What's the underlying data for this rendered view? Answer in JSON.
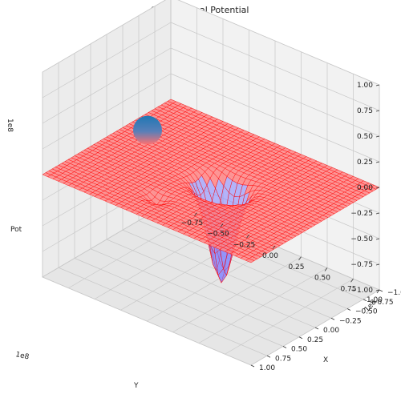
{
  "chart_data": {
    "type": "surface3d",
    "title": "Gravitational Potential",
    "xlabel": "X",
    "ylabel": "Y",
    "zlabel": "Pot",
    "x_ticks": [
      "−1.00",
      "−0.75",
      "−0.50",
      "−0.25",
      "0.00",
      "0.25",
      "0.50",
      "0.75",
      "1.00"
    ],
    "y_ticks": [
      "−0.75",
      "−0.50",
      "−0.25",
      "0.00",
      "0.25",
      "0.50",
      "0.75",
      "1.00"
    ],
    "z_ticks": [
      "−1.00",
      "−0.75",
      "−0.50",
      "−0.25",
      "0.00",
      "0.25",
      "0.50",
      "0.75",
      "1.00"
    ],
    "x_scale_label": "1e8",
    "y_scale_label": "1e8",
    "z_scale_label": "1e8",
    "xlim": [
      -100000000.0,
      100000000.0
    ],
    "ylim": [
      -100000000.0,
      100000000.0
    ],
    "zlim": [
      -100000000.0,
      100000000.0
    ],
    "grid": true,
    "surface_color": "#ff0000",
    "wireframe_color": "#ff0000",
    "well_color": "#8080ff",
    "sphere_color": "#1f77b4",
    "pane_color": "#f2f2f2",
    "potential_sources": [
      {
        "x": 0.0,
        "y": 10000000.0,
        "depth": -95000000.0
      },
      {
        "x": -60000000.0,
        "y": -15000000.0,
        "depth": -8000000.0
      }
    ],
    "body": {
      "x": -50000000.0,
      "y": -30000000.0,
      "z": 55000000.0
    }
  }
}
